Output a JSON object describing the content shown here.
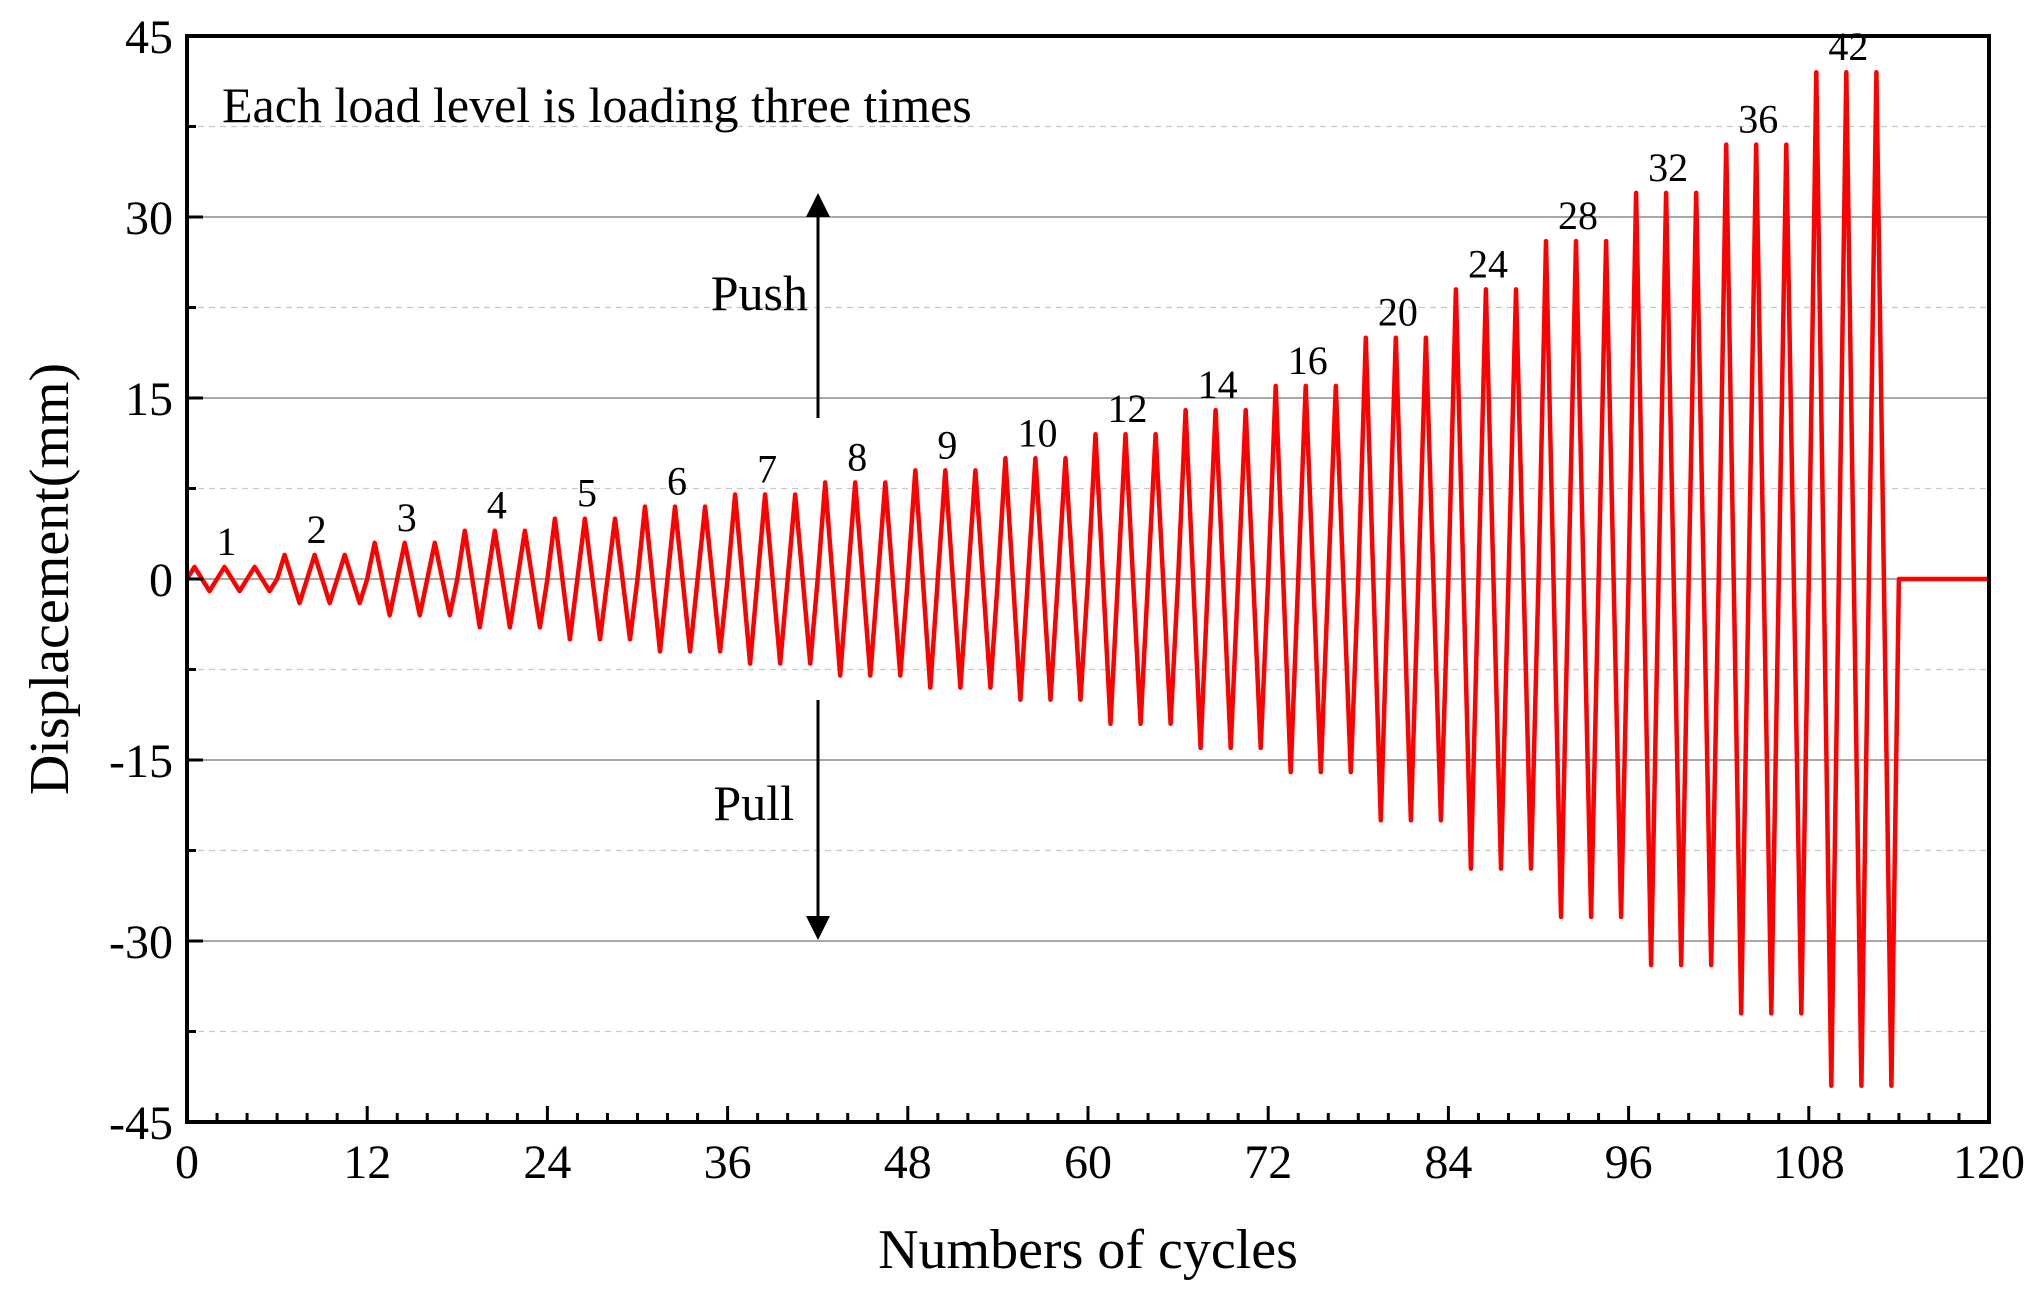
{
  "chart_data": {
    "type": "line",
    "title": "",
    "xlabel": "Numbers of cycles",
    "ylabel": "Displacement(mm)",
    "xlim": [
      0,
      120
    ],
    "ylim": [
      -45,
      45
    ],
    "xticks": [
      "0",
      "12",
      "24",
      "36",
      "48",
      "60",
      "72",
      "84",
      "96",
      "108",
      "120"
    ],
    "yticks": [
      "45",
      "30",
      "15",
      "0",
      "-15",
      "-30",
      "-45"
    ],
    "grid": true,
    "series_color": "#ff0000",
    "load_levels": [
      1,
      2,
      3,
      4,
      5,
      6,
      7,
      8,
      9,
      10,
      12,
      14,
      16,
      20,
      24,
      28,
      32,
      36,
      42
    ],
    "repeats_per_level": 3,
    "cycles_per_level": 6,
    "end_cycle": 120,
    "annotation_main": "Each load level is loading three times",
    "annotation_push": "Push",
    "annotation_pull": "Pull",
    "level_labels": [
      "1",
      "2",
      "3",
      "4",
      "5",
      "6",
      "7",
      "8",
      "9",
      "10",
      "12",
      "14",
      "16",
      "20",
      "24",
      "28",
      "32",
      "36",
      "42"
    ]
  }
}
